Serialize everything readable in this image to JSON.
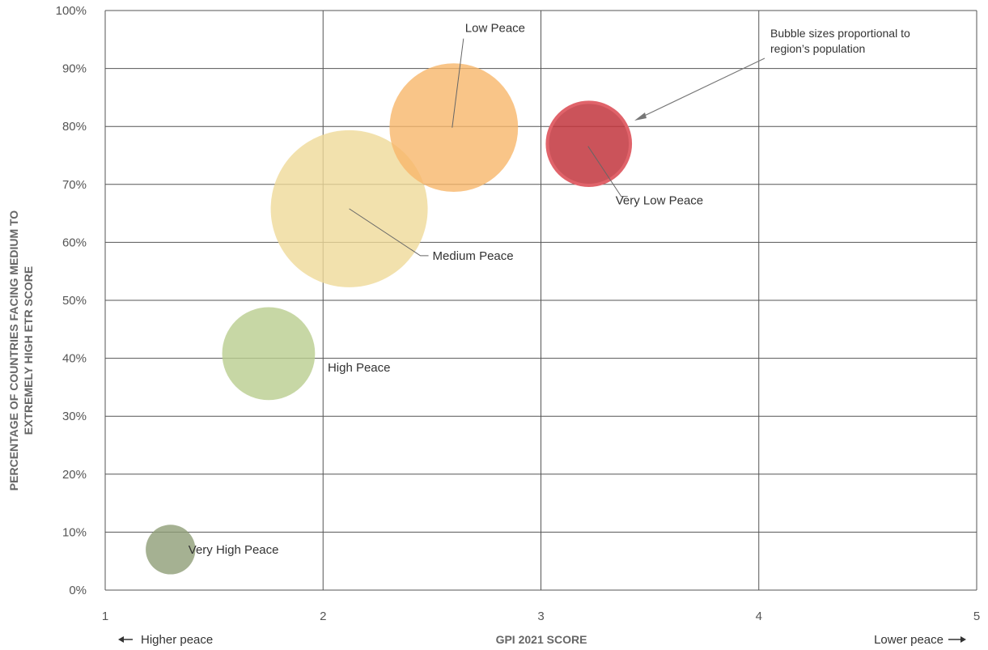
{
  "chart_data": {
    "type": "bubble",
    "xlabel": "GPI 2021 SCORE",
    "ylabel_lines": [
      "PERCENTAGE OF COUNTRIES FACING MEDIUM TO",
      "EXTREMELY HIGH ETR SCORE"
    ],
    "xlim": [
      1,
      5
    ],
    "ylim": [
      0,
      100
    ],
    "x_ticks": [
      "1",
      "2",
      "3",
      "4",
      "5"
    ],
    "y_ticks": [
      "0%",
      "10%",
      "20%",
      "30%",
      "40%",
      "50%",
      "60%",
      "70%",
      "80%",
      "90%",
      "100%"
    ],
    "grid": true,
    "points": [
      {
        "name": "Very High Peace",
        "x": 1.3,
        "y": 7,
        "size": 0.1,
        "color": "#8e9e77"
      },
      {
        "name": "High Peace",
        "x": 1.75,
        "y": 40.8,
        "size": 0.35,
        "color": "#b9cd8f"
      },
      {
        "name": "Medium Peace",
        "x": 2.12,
        "y": 65.8,
        "size": 1.0,
        "color": "#efd999"
      },
      {
        "name": "Low Peace",
        "x": 2.6,
        "y": 79.8,
        "size": 0.67,
        "color": "#f7b66a"
      },
      {
        "name": "Very Low Peace",
        "x": 3.22,
        "y": 77,
        "size": 0.28,
        "color": "#c2353d"
      }
    ],
    "annotation": [
      "Bubble sizes proportional to",
      "region’s population"
    ],
    "direction_left": "Higher peace",
    "direction_right": "Lower peace"
  }
}
